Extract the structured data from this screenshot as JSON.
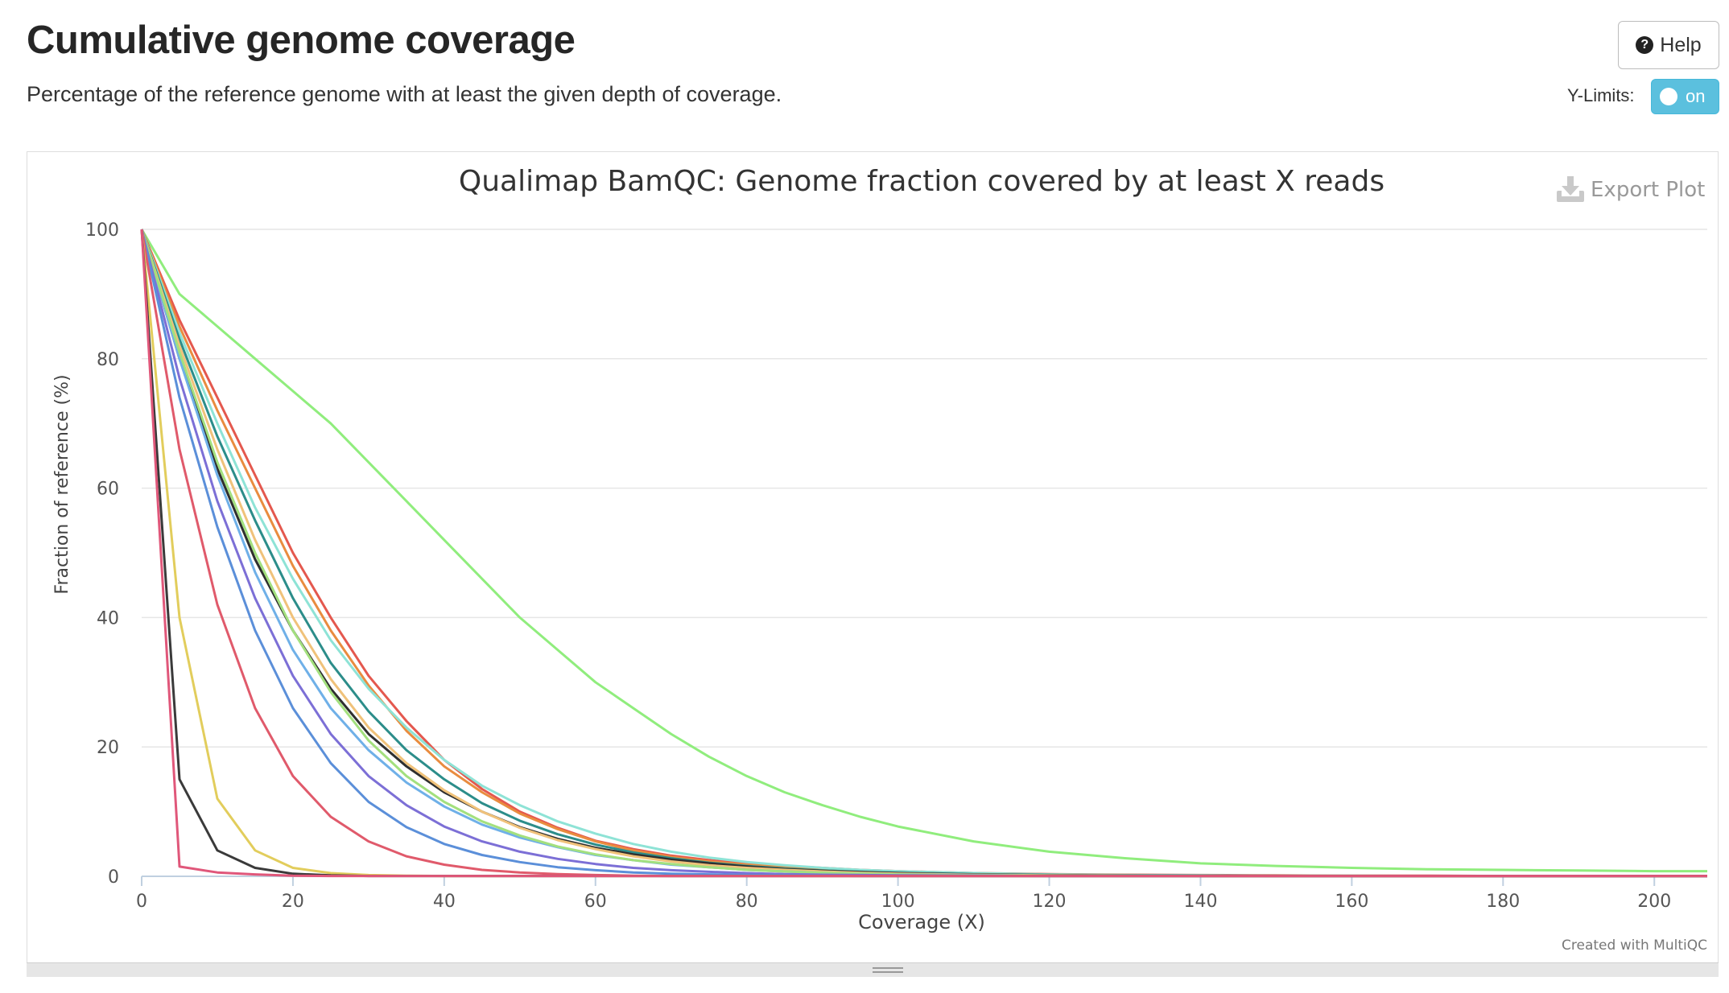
{
  "header": {
    "title": "Cumulative genome coverage",
    "subtitle": "Percentage of the reference genome with at least the given depth of coverage."
  },
  "controls": {
    "help_label": "Help",
    "help_icon": "question-circle-icon",
    "ylimits_label": "Y-Limits:",
    "ylimits_toggle": "on"
  },
  "plot": {
    "export_label": "Export Plot",
    "export_icon": "download-icon",
    "credit": "Created with MultiQC"
  },
  "chart_data": {
    "type": "line",
    "title": "Qualimap BamQC: Genome fraction covered by at least X reads",
    "xlabel": "Coverage (X)",
    "ylabel": "Fraction of reference (%)",
    "xlim": [
      0,
      207
    ],
    "ylim": [
      0,
      100
    ],
    "x_ticks": [
      0,
      20,
      40,
      60,
      80,
      100,
      120,
      140,
      160,
      180,
      200
    ],
    "y_ticks": [
      0,
      20,
      40,
      60,
      80,
      100
    ],
    "grid": "horizontal",
    "legend": "none",
    "x": [
      0,
      5,
      10,
      15,
      20,
      25,
      30,
      35,
      40,
      45,
      50,
      55,
      60,
      65,
      70,
      75,
      80,
      85,
      90,
      95,
      100,
      110,
      120,
      130,
      140,
      150,
      160,
      170,
      180,
      190,
      200,
      207
    ],
    "series": [
      {
        "color": "#90ed7d",
        "values": [
          100,
          90,
          85,
          80,
          75,
          70,
          64,
          58,
          52,
          46,
          40,
          35,
          30,
          26,
          22,
          18.5,
          15.5,
          13,
          11,
          9.2,
          7.7,
          5.4,
          3.8,
          2.8,
          2.0,
          1.6,
          1.3,
          1.1,
          1.0,
          0.9,
          0.8,
          0.8
        ]
      },
      {
        "color": "#e4584e",
        "values": [
          100,
          86,
          74,
          62,
          50,
          40,
          31,
          24,
          18,
          13.5,
          10,
          7.5,
          5.5,
          4.2,
          3.2,
          2.5,
          2.0,
          1.6,
          1.3,
          1.0,
          0.8,
          0.5,
          0.35,
          0.25,
          0.2,
          0.15,
          0.1,
          0.1,
          0.05,
          0.05,
          0.05,
          0.05
        ]
      },
      {
        "color": "#e98c3f",
        "values": [
          100,
          85,
          72,
          60,
          48,
          38,
          29.5,
          22.5,
          17,
          13,
          9.7,
          7.3,
          5.4,
          4.0,
          3.0,
          2.3,
          1.8,
          1.4,
          1.1,
          0.85,
          0.7,
          0.45,
          0.3,
          0.2,
          0.15,
          0.1,
          0.1,
          0.05,
          0.05,
          0.05,
          0.05,
          0.05
        ]
      },
      {
        "color": "#8ee3d6",
        "values": [
          100,
          84,
          70,
          57,
          46,
          36.5,
          29,
          23,
          18,
          14,
          11,
          8.5,
          6.6,
          5.0,
          3.8,
          2.9,
          2.2,
          1.7,
          1.3,
          1.0,
          0.8,
          0.5,
          0.3,
          0.2,
          0.15,
          0.1,
          0.1,
          0.05,
          0.05,
          0.05,
          0.05,
          0.05
        ]
      },
      {
        "color": "#2c8d8a",
        "values": [
          100,
          83,
          68,
          55,
          43,
          33,
          25.5,
          19.5,
          15,
          11.3,
          8.6,
          6.5,
          4.9,
          3.7,
          2.8,
          2.1,
          1.6,
          1.2,
          0.9,
          0.7,
          0.55,
          0.35,
          0.2,
          0.15,
          0.1,
          0.05,
          0.05,
          0.05,
          0.05,
          0.05,
          0.05,
          0.05
        ]
      },
      {
        "color": "#2f2f2f",
        "values": [
          100,
          80,
          63,
          49,
          38,
          29,
          22,
          17,
          13,
          10,
          7.6,
          5.8,
          4.4,
          3.4,
          2.6,
          2.0,
          1.5,
          1.1,
          0.85,
          0.65,
          0.5,
          0.3,
          0.2,
          0.1,
          0.05,
          0.05,
          0.05,
          0.05,
          0.05,
          0.05,
          0.05,
          0.05
        ]
      },
      {
        "color": "#f0c27a",
        "values": [
          100,
          82,
          66,
          52,
          40,
          30.5,
          23,
          17.5,
          13.3,
          10,
          7.5,
          5.6,
          4.2,
          3.1,
          2.3,
          1.7,
          1.3,
          1.0,
          0.75,
          0.55,
          0.4,
          0.25,
          0.15,
          0.1,
          0.05,
          0.05,
          0.05,
          0.05,
          0.05,
          0.05,
          0.05,
          0.05
        ]
      },
      {
        "color": "#6fb0e8",
        "values": [
          100,
          80,
          62,
          47,
          35,
          26,
          19.5,
          14.5,
          10.8,
          8.0,
          6.0,
          4.5,
          3.3,
          2.5,
          1.8,
          1.4,
          1.0,
          0.75,
          0.55,
          0.4,
          0.3,
          0.2,
          0.1,
          0.05,
          0.05,
          0.05,
          0.05,
          0.05,
          0.05,
          0.05,
          0.05,
          0.05
        ]
      },
      {
        "color": "#a3e07e",
        "values": [
          100,
          81,
          64,
          50,
          38,
          28.5,
          21,
          15.5,
          11.5,
          8.5,
          6.3,
          4.6,
          3.4,
          2.5,
          1.9,
          1.4,
          1.0,
          0.75,
          0.55,
          0.4,
          0.3,
          0.15,
          0.1,
          0.05,
          0.05,
          0.05,
          0.05,
          0.05,
          0.05,
          0.05,
          0.05,
          0.05
        ]
      },
      {
        "color": "#7c6fd6",
        "values": [
          100,
          77,
          58,
          43,
          31,
          22,
          15.5,
          11,
          7.7,
          5.4,
          3.8,
          2.7,
          1.9,
          1.3,
          0.95,
          0.7,
          0.5,
          0.35,
          0.25,
          0.2,
          0.15,
          0.1,
          0.05,
          0.05,
          0.05,
          0.05,
          0.05,
          0.05,
          0.05,
          0.05,
          0.05,
          0.05
        ]
      },
      {
        "color": "#5b8fd9",
        "values": [
          100,
          74,
          54,
          38,
          26,
          17.5,
          11.5,
          7.6,
          5.0,
          3.3,
          2.2,
          1.4,
          0.95,
          0.6,
          0.4,
          0.3,
          0.2,
          0.15,
          0.1,
          0.05,
          0.05,
          0.05,
          0.05,
          0.05,
          0.05,
          0.05,
          0.05,
          0.05,
          0.05,
          0.05,
          0.05,
          0.05
        ]
      },
      {
        "color": "#e05a6b",
        "values": [
          100,
          66,
          42,
          26,
          15.5,
          9.2,
          5.4,
          3.1,
          1.8,
          1.0,
          0.6,
          0.35,
          0.2,
          0.1,
          0.05,
          0.05,
          0.05,
          0.05,
          0.05,
          0.05,
          0.05,
          0.05,
          0.05,
          0.05,
          0.05,
          0.05,
          0.05,
          0.05,
          0.05,
          0.05,
          0.05,
          0.05
        ]
      },
      {
        "color": "#e2cd5c",
        "values": [
          100,
          40,
          12,
          4,
          1.3,
          0.5,
          0.2,
          0.1,
          0.05,
          0.05,
          0.05,
          0.05,
          0.05,
          0.05,
          0.05,
          0.05,
          0.05,
          0.05,
          0.05,
          0.05,
          0.05,
          0.05,
          0.05,
          0.05,
          0.05,
          0.05,
          0.05,
          0.05,
          0.05,
          0.05,
          0.05,
          0.05
        ]
      },
      {
        "color": "#3a3a3a",
        "values": [
          100,
          15,
          4,
          1.3,
          0.4,
          0.15,
          0.05,
          0.05,
          0.05,
          0.05,
          0.05,
          0.05,
          0.05,
          0.05,
          0.05,
          0.05,
          0.05,
          0.05,
          0.05,
          0.05,
          0.05,
          0.05,
          0.05,
          0.05,
          0.05,
          0.05,
          0.05,
          0.05,
          0.05,
          0.05,
          0.05,
          0.05
        ]
      },
      {
        "color": "#e0577a",
        "values": [
          100,
          1.5,
          0.6,
          0.3,
          0.1,
          0.05,
          0.05,
          0.05,
          0.05,
          0.05,
          0.05,
          0.05,
          0.05,
          0.05,
          0.05,
          0.05,
          0.05,
          0.05,
          0.05,
          0.05,
          0.05,
          0.05,
          0.05,
          0.05,
          0.05,
          0.05,
          0.05,
          0.05,
          0.05,
          0.05,
          0.05,
          0.05
        ]
      }
    ]
  }
}
